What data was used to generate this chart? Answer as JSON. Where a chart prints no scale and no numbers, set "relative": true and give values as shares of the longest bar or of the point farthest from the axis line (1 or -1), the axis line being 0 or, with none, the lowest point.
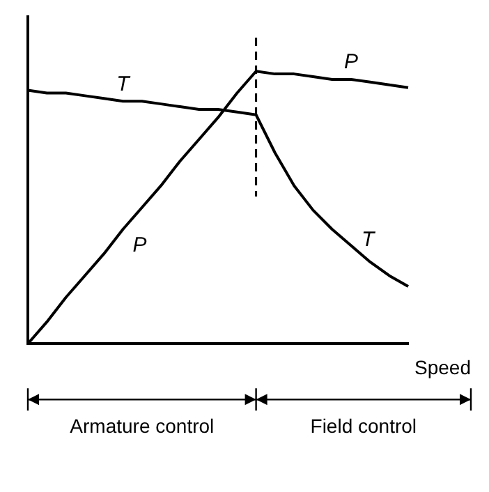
{
  "chart_data": {
    "type": "line",
    "relative": true,
    "xlabel": "Speed",
    "categories": [
      null,
      null,
      null,
      null,
      null,
      null,
      null,
      null,
      null,
      null,
      null,
      null,
      null,
      null,
      null,
      null,
      null,
      null,
      null,
      null,
      null
    ],
    "series": [
      {
        "name": "T",
        "color": "#000000",
        "values": [
          0.93,
          0.92,
          0.92,
          0.91,
          0.9,
          0.89,
          0.89,
          0.88,
          0.87,
          0.86,
          0.86,
          0.85,
          0.84,
          0.7,
          0.58,
          0.49,
          0.42,
          0.36,
          0.3,
          0.25,
          0.21
        ]
      },
      {
        "name": "P",
        "color": "#000000",
        "values": [
          0,
          0.08,
          0.17,
          0.25,
          0.33,
          0.42,
          0.5,
          0.58,
          0.67,
          0.75,
          0.83,
          0.92,
          1,
          0.99,
          0.99,
          0.98,
          0.97,
          0.97,
          0.96,
          0.95,
          0.94
        ]
      }
    ],
    "annotations": [
      "Armature control",
      "Field control"
    ],
    "grid": false,
    "legend": false,
    "marker": "none",
    "line_style": "solid"
  }
}
